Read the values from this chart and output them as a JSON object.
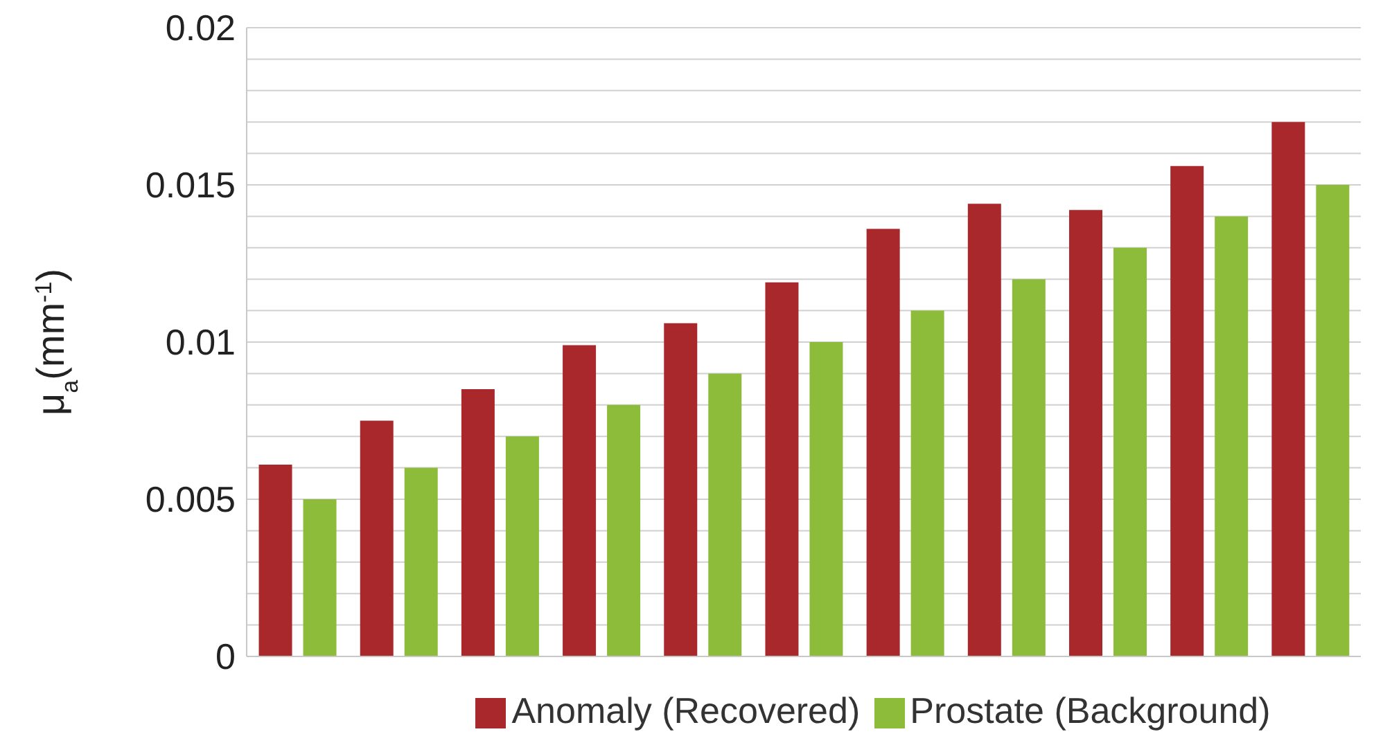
{
  "chart_data": {
    "type": "bar",
    "ylabel": "μ$_{a}$(mm$^{-1}$)",
    "categories": [
      null,
      null,
      null,
      null,
      null,
      null,
      null,
      null,
      null,
      null,
      null
    ],
    "series": [
      {
        "name": "Anomaly (Recovered)",
        "color": "#a8282b",
        "values": [
          0.0061,
          0.0075,
          0.0085,
          0.0099,
          0.0106,
          0.0119,
          0.0136,
          0.0144,
          0.0142,
          0.0156,
          0.017
        ]
      },
      {
        "name": "Prostate (Background)",
        "color": "#8dbb3a",
        "values": [
          0.005,
          0.006,
          0.007,
          0.008,
          0.009,
          0.01,
          0.011,
          0.012,
          0.013,
          0.014,
          0.015
        ]
      }
    ],
    "ylim": [
      0,
      0.02
    ],
    "yticks": [
      0,
      {
        "value": 0.001,
        "label": null
      },
      {
        "value": 0.002,
        "label": null
      },
      {
        "value": 0.003,
        "label": null
      },
      {
        "value": 0.004,
        "label": null
      },
      0.005,
      {
        "value": 0.006,
        "label": null
      },
      {
        "value": 0.007,
        "label": null
      },
      {
        "value": 0.008,
        "label": null
      },
      {
        "value": 0.009,
        "label": null
      },
      0.01,
      {
        "value": 0.011,
        "label": null
      },
      {
        "value": 0.012,
        "label": null
      },
      {
        "value": 0.013,
        "label": null
      },
      {
        "value": 0.014,
        "label": null
      },
      0.015,
      {
        "value": 0.016,
        "label": null
      },
      {
        "value": 0.017,
        "label": null
      },
      {
        "value": 0.018,
        "label": null
      },
      {
        "value": 0.019,
        "label": null
      },
      0.02
    ],
    "grid": "y",
    "legend": "bottom"
  }
}
